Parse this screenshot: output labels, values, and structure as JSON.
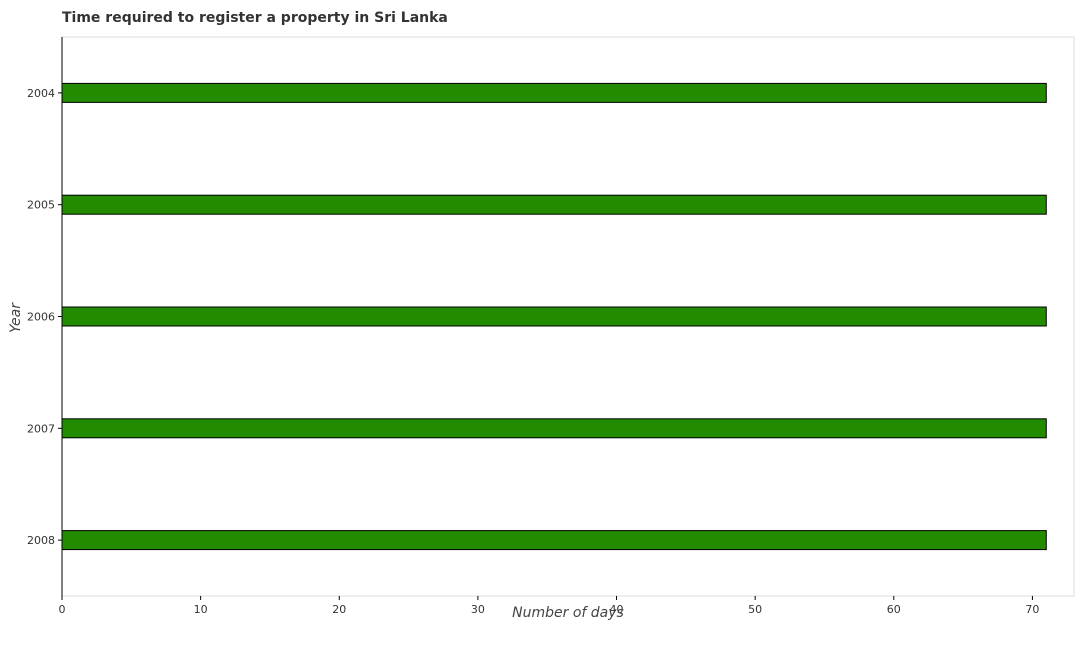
{
  "chart_data": {
    "type": "bar",
    "orientation": "horizontal",
    "title": "Time required to register a property in Sri Lanka",
    "xlabel": "Number of days",
    "ylabel": "Year",
    "categories": [
      "2004",
      "2005",
      "2006",
      "2007",
      "2008"
    ],
    "values": [
      71,
      71,
      71,
      71,
      71
    ],
    "xlim": [
      0,
      73
    ],
    "xticks": [
      0,
      10,
      20,
      30,
      40,
      50,
      60,
      70
    ],
    "grid": false,
    "bar_color": "#228b00",
    "bar_edge_color": "#000000"
  }
}
